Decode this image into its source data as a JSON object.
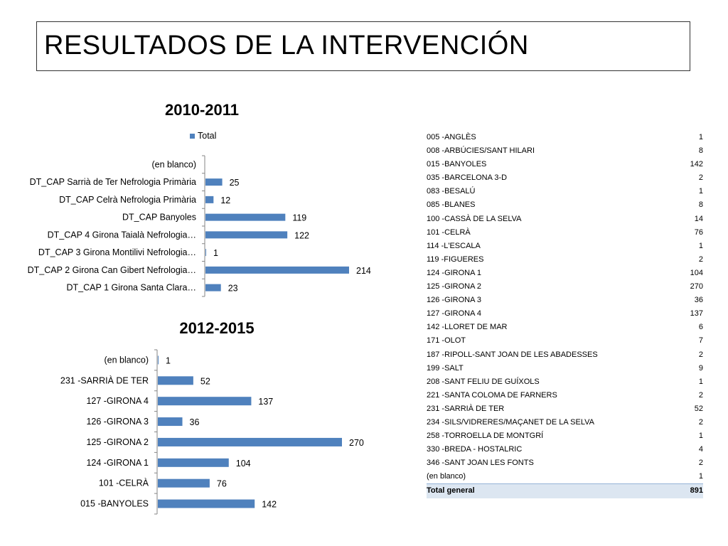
{
  "page": {
    "title": "RESULTADOS DE LA INTERVENCIÓN"
  },
  "colors": {
    "bar": "#4f81bd",
    "axis": "#868686"
  },
  "chart_data": [
    {
      "type": "bar",
      "orientation": "horizontal",
      "title": "2010-2011",
      "legend": [
        "Total"
      ],
      "legend_position": "top-left",
      "categories": [
        "(en blanco)",
        "DT_CAP Sarrià de Ter Nefrologia Primària",
        "DT_CAP Celrà Nefrologia Primària",
        "DT_CAP Banyoles",
        "DT_CAP 4 Girona Taialà Nefrologia…",
        "DT_CAP 3 Girona Montilivi Nefrologia…",
        "DT_CAP 2 Girona Can Gibert Nefrologia…",
        "DT_CAP 1 Girona Santa Clara…"
      ],
      "values": [
        null,
        25,
        12,
        119,
        122,
        1,
        214,
        23
      ],
      "value_labels": [
        "",
        "25",
        "12",
        "119",
        "122",
        "1",
        "214",
        "23"
      ],
      "grid": false
    },
    {
      "type": "bar",
      "orientation": "horizontal",
      "title": "2012-2015",
      "categories": [
        "(en blanco)",
        "231 -SARRIÀ DE TER",
        "127 -GIRONA 4",
        "126 -GIRONA 3",
        "125 -GIRONA 2",
        "124 -GIRONA 1",
        "101 -CELRÀ",
        "015 -BANYOLES"
      ],
      "values": [
        1,
        52,
        137,
        36,
        270,
        104,
        76,
        142
      ],
      "value_labels": [
        "1",
        "52",
        "137",
        "36",
        "270",
        "104",
        "76",
        "142"
      ],
      "grid": false
    },
    {
      "type": "table",
      "rows": [
        {
          "label": "005 -ANGLÈS",
          "value": "1"
        },
        {
          "label": "008 -ARBÚCIES/SANT HILARI",
          "value": "8"
        },
        {
          "label": "015 -BANYOLES",
          "value": "142"
        },
        {
          "label": "035 -BARCELONA 3-D",
          "value": "2"
        },
        {
          "label": "083 -BESALÚ",
          "value": "1"
        },
        {
          "label": "085 -BLANES",
          "value": "8"
        },
        {
          "label": "100 -CASSÀ DE LA SELVA",
          "value": "14"
        },
        {
          "label": "101 -CELRÀ",
          "value": "76"
        },
        {
          "label": "114 -L'ESCALA",
          "value": "1"
        },
        {
          "label": "119 -FIGUERES",
          "value": "2"
        },
        {
          "label": "124 -GIRONA 1",
          "value": "104"
        },
        {
          "label": "125 -GIRONA 2",
          "value": "270"
        },
        {
          "label": "126 -GIRONA 3",
          "value": "36"
        },
        {
          "label": "127 -GIRONA 4",
          "value": "137"
        },
        {
          "label": "142 -LLORET DE MAR",
          "value": "6"
        },
        {
          "label": "171 -OLOT",
          "value": "7"
        },
        {
          "label": "187 -RIPOLL-SANT JOAN DE LES ABADESSES",
          "value": "2"
        },
        {
          "label": "199 -SALT",
          "value": "9"
        },
        {
          "label": "208 -SANT FELIU DE GUÍXOLS",
          "value": "1"
        },
        {
          "label": "221 -SANTA COLOMA DE FARNERS",
          "value": "2"
        },
        {
          "label": "231 -SARRIÀ DE TER",
          "value": "52"
        },
        {
          "label": "234 -SILS/VIDRERES/MAÇANET DE LA SELVA",
          "value": "2"
        },
        {
          "label": "258 -TORROELLA DE MONTGRÍ",
          "value": "1"
        },
        {
          "label": "330 -BREDA - HOSTALRIC",
          "value": "4"
        },
        {
          "label": "346 -SANT JOAN LES FONTS",
          "value": "2"
        },
        {
          "label": "(en blanco)",
          "value": "1"
        }
      ],
      "total": {
        "label": "Total general",
        "value": "891"
      }
    }
  ]
}
